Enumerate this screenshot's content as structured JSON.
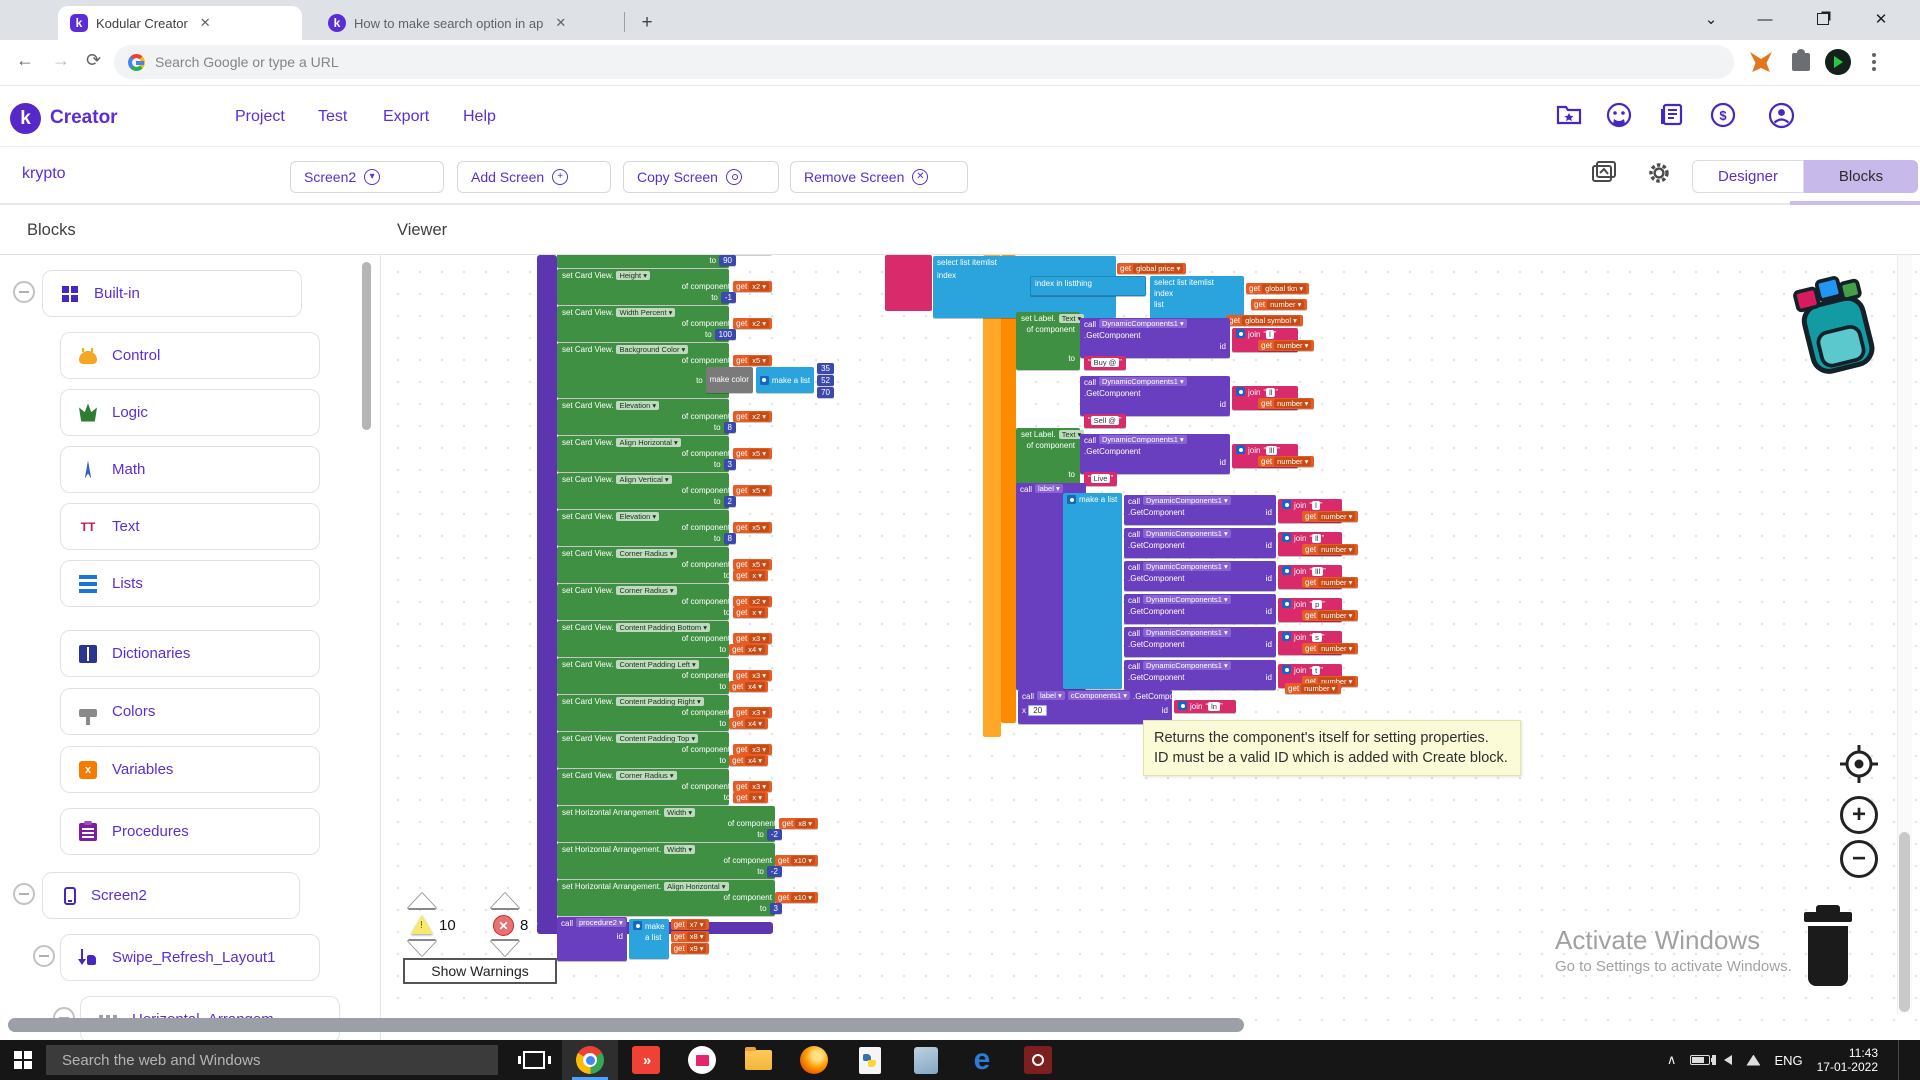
{
  "browser": {
    "tab1": "Kodular Creator",
    "tab2": "How to make search option in ap",
    "address_placeholder": "Search Google or type a URL",
    "new_tab": "+",
    "close_glyph": "✕",
    "chevron": "⌄",
    "minimize": "—",
    "back": "←",
    "forward": "→",
    "reload": "⟳",
    "menu_dots": "⋮"
  },
  "header": {
    "brand": "Creator",
    "logo_letter": "k",
    "menus": [
      "Project",
      "Test",
      "Export",
      "Help"
    ]
  },
  "toolbar": {
    "project_name": "krypto",
    "screen_button": "Screen2",
    "add_screen": "Add Screen",
    "copy_screen": "Copy Screen",
    "remove_screen": "Remove Screen",
    "designer": "Designer",
    "blocks": "Blocks",
    "screen_caret": "▾",
    "add_glyph": "+",
    "remove_glyph": "✕"
  },
  "panels": {
    "blocks_title": "Blocks",
    "viewer_title": "Viewer"
  },
  "sidebar": {
    "builtin": "Built-in",
    "items": [
      {
        "icon": "control",
        "label": "Control"
      },
      {
        "icon": "logic",
        "label": "Logic"
      },
      {
        "icon": "math",
        "label": "Math"
      },
      {
        "icon": "text",
        "label": "Text"
      },
      {
        "icon": "lists",
        "label": "Lists"
      },
      {
        "icon": "dict",
        "label": "Dictionaries"
      },
      {
        "icon": "colors",
        "label": "Colors"
      },
      {
        "icon": "variables",
        "label": "Variables"
      },
      {
        "icon": "procedures",
        "label": "Procedures"
      }
    ],
    "screen": "Screen2",
    "swipe": "Swipe_Refresh_Layout1",
    "horizontal": "Horizontal_Arrangem",
    "text_icon_glyph": "TT",
    "variables_icon_glyph": "x"
  },
  "workspace": {
    "strings": {
      "set_card": "set Card View.",
      "set_horiz": "set Horizontal Arrangement.",
      "set_label": "set Label.",
      "text_prop": "Text",
      "of_component": "of component",
      "to": "to",
      "get": "get",
      "call": "call",
      "id": "id",
      "x": "x",
      "join": "join",
      "make_color": "make color",
      "make_list": "make a list",
      "get_component": ".GetComponent",
      "dyn": "DynamicComponents1",
      "dyn_short": "cComponents1",
      "label_chip": "label",
      "proc": "procedure2",
      "select_item": "select list item",
      "list_w": "list",
      "index_w": "index",
      "index_in_list": "index in list",
      "thing_w": "thing",
      "number": "number",
      "gprice": "global price",
      "gtkn": "global tkn",
      "gsymbol": "global symbol",
      "num20": "20",
      "caret": "▾",
      "qo": "“",
      "qc": "”"
    },
    "card_stack": [
      {
        "t": "card",
        "partial": true,
        "get": "x3",
        "to": [
          "num",
          "90"
        ]
      },
      {
        "t": "card",
        "prop": "Height",
        "get": "x2",
        "to": [
          "num",
          "-1"
        ]
      },
      {
        "t": "card",
        "prop": "Width Percent",
        "get": "x2",
        "to": [
          "num",
          "100"
        ]
      },
      {
        "t": "card",
        "prop": "Background Color",
        "get": "x5",
        "to": [
          "color",
          ""
        ]
      },
      {
        "t": "card",
        "prop": "Elevation",
        "get": "x2",
        "to": [
          "num",
          "8"
        ]
      },
      {
        "t": "card",
        "prop": "Align Horizontal",
        "get": "x5",
        "to": [
          "num",
          "3"
        ]
      },
      {
        "t": "card",
        "prop": "Align Vertical",
        "get": "x5",
        "to": [
          "num",
          "2"
        ]
      },
      {
        "t": "card",
        "prop": "Elevation",
        "get": "x5",
        "to": [
          "num",
          "8"
        ]
      },
      {
        "t": "card",
        "prop": "Corner Radius",
        "get": "x5",
        "to": [
          "get",
          "x"
        ]
      },
      {
        "t": "card",
        "prop": "Corner Radius",
        "get": "x2",
        "to": [
          "get",
          "x"
        ]
      },
      {
        "t": "card",
        "prop": "Content Padding Bottom",
        "get": "x3",
        "to": [
          "get",
          "x4"
        ]
      },
      {
        "t": "card",
        "prop": "Content Padding Left",
        "get": "x3",
        "to": [
          "get",
          "x4"
        ]
      },
      {
        "t": "card",
        "prop": "Content Padding Right",
        "get": "x3",
        "to": [
          "get",
          "x4"
        ]
      },
      {
        "t": "card",
        "prop": "Content Padding Top",
        "get": "x3",
        "to": [
          "get",
          "x4"
        ]
      },
      {
        "t": "card",
        "prop": "Corner Radius",
        "get": "x3",
        "to": [
          "get",
          "x"
        ]
      },
      {
        "t": "horiz",
        "prop": "Width",
        "get": "x8",
        "to": [
          "num",
          "-2"
        ]
      },
      {
        "t": "horiz",
        "prop": "Width",
        "get": "x10",
        "to": [
          "num",
          "-2"
        ]
      },
      {
        "t": "horiz",
        "prop": "Align Horizontal",
        "get": "x10",
        "to": [
          "num",
          "3"
        ]
      }
    ],
    "color_list_values": [
      "35",
      "52",
      "70"
    ],
    "proc_call_args": [
      "x7",
      "x8",
      "x9"
    ],
    "label_blocks": [
      {
        "join": "l",
        "text": "Buy @"
      },
      {
        "join": "ll",
        "text": "Sell @"
      },
      {
        "join": "lll",
        "text": "Live"
      }
    ],
    "cluster_joins": [
      "l",
      "ll",
      "lll",
      "p",
      "s",
      "t"
    ],
    "bottom_join": "ln",
    "tooltip_line1": "Returns the component's itself for setting properties.",
    "tooltip_line2": "ID must be a valid ID which is added with Create block.",
    "warning_count": "10",
    "error_count": "8",
    "show_warnings": "Show Warnings"
  },
  "watermark": {
    "line1": "Activate Windows",
    "line2": "Go to Settings to activate Windows."
  },
  "taskbar": {
    "search_placeholder": "Search the web and Windows",
    "language": "ENG",
    "time": "11:43",
    "date": "17-01-2022",
    "app_icons": [
      "task-view",
      "chrome",
      "anydesk",
      "reader",
      "file-explorer",
      "firefox",
      "python",
      "glass",
      "edge",
      "recorder"
    ]
  }
}
